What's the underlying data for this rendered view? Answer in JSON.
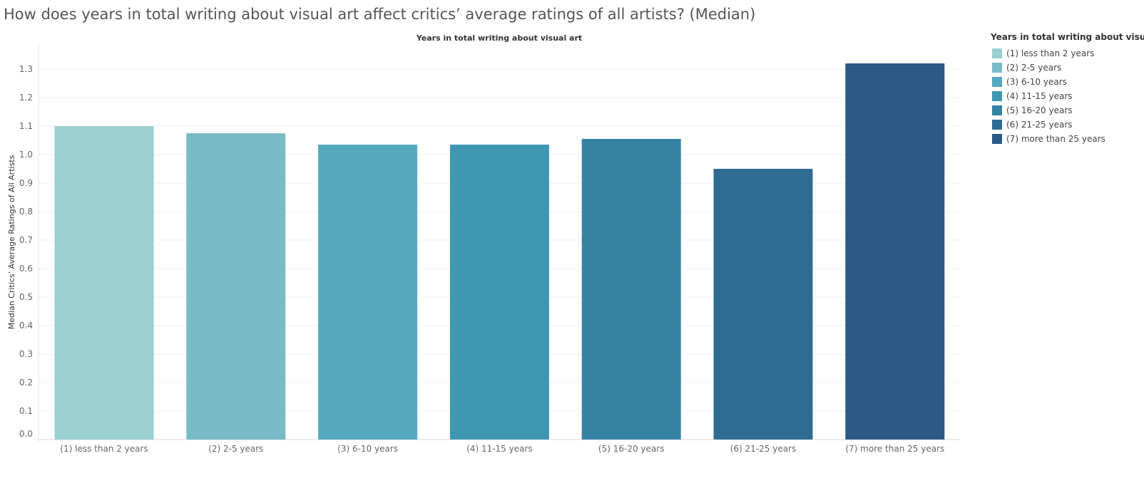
{
  "page": {
    "title": "How does years in total writing about visual art affect critics’ average ratings of all artists? (Median)"
  },
  "legend": {
    "title": "Years in total writing about visual art",
    "items": [
      {
        "label": "(1) less than 2 years",
        "color": "#9ad0d0"
      },
      {
        "label": "(2) 2-5 years",
        "color": "#79bbc7"
      },
      {
        "label": "(3) 6-10 years",
        "color": "#55a9be"
      },
      {
        "label": "(4) 11-15 years",
        "color": "#3f97b2"
      },
      {
        "label": "(5) 16-20 years",
        "color": "#3483a2"
      },
      {
        "label": "(6) 21-25 years",
        "color": "#2f6c94"
      },
      {
        "label": "(7) more than 25 years",
        "color": "#2c5985"
      }
    ]
  },
  "chart_data": {
    "type": "bar",
    "title": "How does years in total writing about visual art affect critics’ average ratings of all artists? (Median)",
    "column_header": "Years in total writing about visual art",
    "ylabel": "Median Critics’ Average Ratings of All Artists",
    "xlabel": "",
    "categories": [
      "(1) less than 2 years",
      "(2) 2-5 years",
      "(3) 6-10 years",
      "(4) 11-15 years",
      "(5) 16-20 years",
      "(6) 21-25 years",
      "(7) more than 25 years"
    ],
    "values": [
      1.1,
      1.075,
      1.035,
      1.035,
      1.055,
      0.95,
      1.32
    ],
    "colors": [
      "#9ad0d0",
      "#79bbc7",
      "#55a9be",
      "#3f97b2",
      "#3483a2",
      "#2f6c94",
      "#2c5985"
    ],
    "yticks": [
      "0.0",
      "0.1",
      "0.2",
      "0.3",
      "0.4",
      "0.5",
      "0.6",
      "0.7",
      "0.8",
      "0.9",
      "1.0",
      "1.1",
      "1.2",
      "1.3"
    ],
    "ylim": [
      0,
      1.35
    ],
    "grid": true,
    "legend_position": "right"
  }
}
